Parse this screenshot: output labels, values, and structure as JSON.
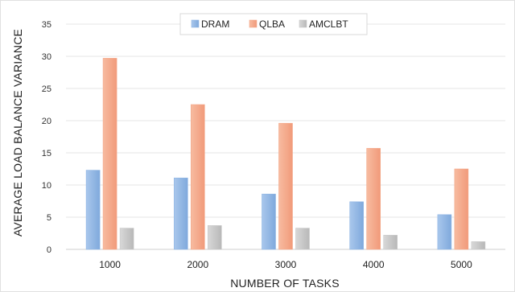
{
  "chart_data": {
    "type": "bar",
    "title": "",
    "xlabel": "NUMBER OF  TASKS",
    "ylabel": "AVERAGE LOAD BALANCE VARIANCE",
    "categories": [
      "1000",
      "2000",
      "3000",
      "4000",
      "5000"
    ],
    "ylim": [
      0,
      35
    ],
    "yticks": [
      0,
      5,
      10,
      15,
      20,
      25,
      30,
      35
    ],
    "grid": true,
    "legend_position": "top-center",
    "series": [
      {
        "name": "DRAM",
        "color": "#8fb6e4",
        "values": [
          12.3,
          11.1,
          8.6,
          7.4,
          5.4
        ]
      },
      {
        "name": "QLBA",
        "color": "#f4a98a",
        "values": [
          29.7,
          22.5,
          19.6,
          15.7,
          12.5
        ]
      },
      {
        "name": "AMCLBT",
        "color": "#c8c8c8",
        "values": [
          3.3,
          3.7,
          3.3,
          2.2,
          1.2
        ]
      }
    ]
  }
}
